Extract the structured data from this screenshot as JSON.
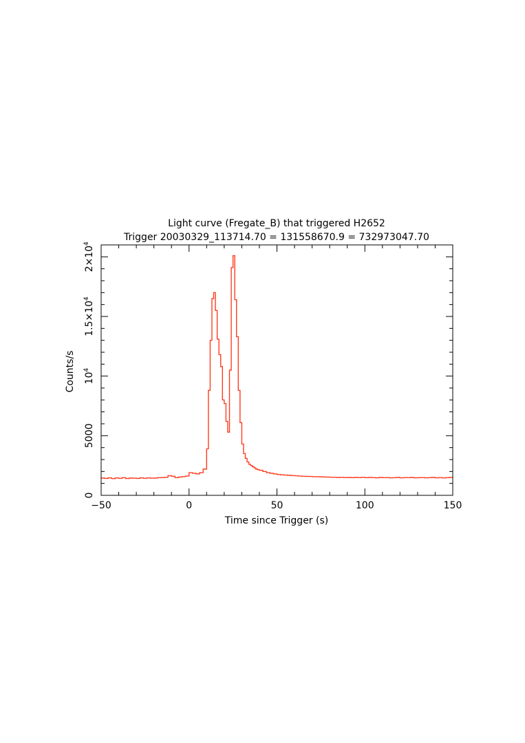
{
  "chart_data": {
    "type": "line",
    "step": true,
    "title": "Light curve (Fregate_B) that triggered H2652",
    "subtitle": "Trigger 20030329_113714.70 = 131558670.9 = 732973047.70",
    "xlabel": "Time since Trigger (s)",
    "ylabel": "Counts/s",
    "xlim": [
      -50,
      150
    ],
    "ylim": [
      0,
      21000
    ],
    "grid": false,
    "legend": "none",
    "line_color": "#ff3b1f",
    "x_ticks": [
      {
        "value": -50,
        "label": "−50"
      },
      {
        "value": 0,
        "label": "0"
      },
      {
        "value": 50,
        "label": "50"
      },
      {
        "value": 100,
        "label": "100"
      },
      {
        "value": 150,
        "label": "150"
      }
    ],
    "y_ticks": [
      {
        "value": 0,
        "label": "0",
        "sup": ""
      },
      {
        "value": 5000,
        "label": "5000",
        "sup": ""
      },
      {
        "value": 10000,
        "label": "10",
        "sup": "4"
      },
      {
        "value": 15000,
        "label": "1.5×10",
        "sup": "4"
      },
      {
        "value": 20000,
        "label": "2×10",
        "sup": "4"
      }
    ],
    "series": [
      {
        "x": [
          -50,
          -48,
          -46,
          -44,
          -42,
          -40,
          -38,
          -36,
          -34,
          -32,
          -30,
          -28,
          -26,
          -24,
          -22,
          -20,
          -18,
          -16,
          -14,
          -12,
          -10,
          -8,
          -6,
          -4,
          -2,
          0,
          2,
          4,
          6,
          8,
          10,
          11,
          12,
          13,
          14,
          15,
          16,
          17,
          18,
          19,
          20,
          21,
          22,
          23,
          24,
          25,
          26,
          27,
          28,
          29,
          30,
          31,
          32,
          33,
          34,
          35,
          36,
          37,
          38,
          39,
          40,
          42,
          44,
          46,
          48,
          50,
          52,
          54,
          56,
          58,
          60,
          62,
          64,
          66,
          68,
          70,
          72,
          74,
          76,
          78,
          80,
          82,
          84,
          86,
          88,
          90,
          92,
          94,
          96,
          98,
          100,
          102,
          104,
          106,
          108,
          110,
          112,
          114,
          116,
          118,
          120,
          122,
          124,
          126,
          128,
          130,
          132,
          134,
          136,
          138,
          140,
          142,
          144,
          146,
          148
        ],
        "y": [
          1450,
          1420,
          1470,
          1400,
          1460,
          1430,
          1480,
          1410,
          1450,
          1440,
          1420,
          1470,
          1430,
          1460,
          1440,
          1450,
          1480,
          1490,
          1510,
          1650,
          1600,
          1480,
          1530,
          1570,
          1620,
          1900,
          1850,
          1800,
          1900,
          2200,
          3900,
          8800,
          13000,
          16500,
          17000,
          15500,
          13100,
          11800,
          10800,
          8000,
          7700,
          6200,
          5300,
          10500,
          19100,
          20100,
          16400,
          13300,
          8800,
          6100,
          4300,
          3500,
          3100,
          2800,
          2600,
          2500,
          2400,
          2300,
          2200,
          2150,
          2100,
          2000,
          1900,
          1850,
          1800,
          1750,
          1720,
          1700,
          1680,
          1660,
          1640,
          1620,
          1600,
          1590,
          1580,
          1570,
          1560,
          1550,
          1540,
          1530,
          1520,
          1510,
          1500,
          1510,
          1490,
          1500,
          1480,
          1500,
          1490,
          1510,
          1480,
          1500,
          1490,
          1470,
          1500,
          1480,
          1490,
          1470,
          1480,
          1500,
          1470,
          1490,
          1480,
          1500,
          1470,
          1480,
          1490,
          1470,
          1480,
          1500,
          1470,
          1490,
          1460,
          1480,
          1500
        ]
      }
    ]
  }
}
